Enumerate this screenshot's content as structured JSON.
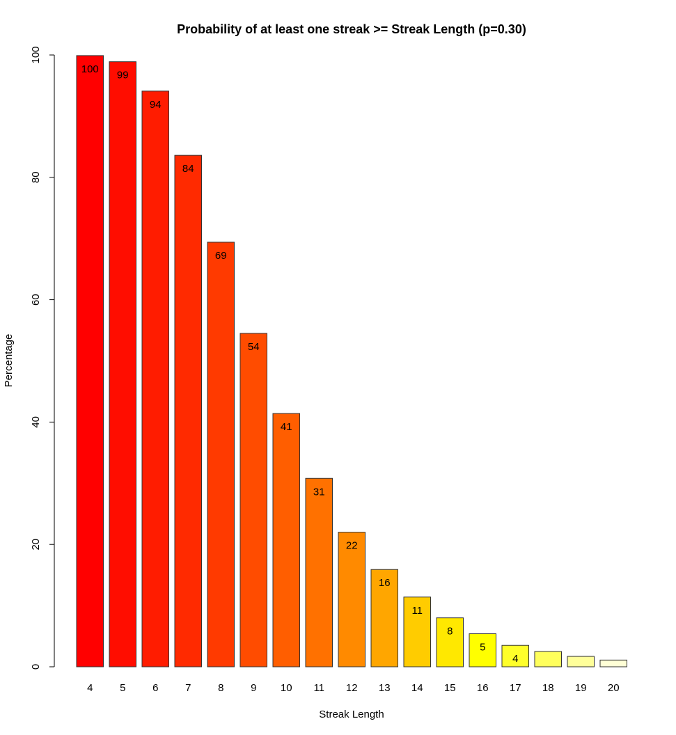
{
  "chart_data": {
    "type": "bar",
    "title": "Probability of at least one streak >= Streak Length (p=0.30)",
    "xlabel": "Streak Length",
    "ylabel": "Percentage",
    "ylim": [
      0,
      100
    ],
    "yticks": [
      0,
      20,
      40,
      60,
      80,
      100
    ],
    "grid": false,
    "legend": "none",
    "categories": [
      "4",
      "5",
      "6",
      "7",
      "8",
      "9",
      "10",
      "11",
      "12",
      "13",
      "14",
      "15",
      "16",
      "17",
      "18",
      "19",
      "20"
    ],
    "values": [
      99.9,
      98.9,
      94.1,
      83.6,
      69.4,
      54.5,
      41.4,
      30.8,
      22.0,
      15.9,
      11.4,
      8.0,
      5.4,
      3.5,
      2.5,
      1.7,
      1.1
    ],
    "data_labels": [
      "100",
      "99",
      "94",
      "84",
      "69",
      "54",
      "41",
      "31",
      "22",
      "16",
      "11",
      "8",
      "5",
      "4",
      "",
      "",
      ""
    ],
    "colors": [
      "#ff0000",
      "#ff0d00",
      "#ff1c00",
      "#ff2a00",
      "#ff3a00",
      "#ff4c00",
      "#ff5e00",
      "#ff7100",
      "#ff8a00",
      "#ffa600",
      "#ffcc00",
      "#ffe800",
      "#ffff00",
      "#ffff2a",
      "#ffff5c",
      "#ffff9a",
      "#ffffd6"
    ]
  }
}
